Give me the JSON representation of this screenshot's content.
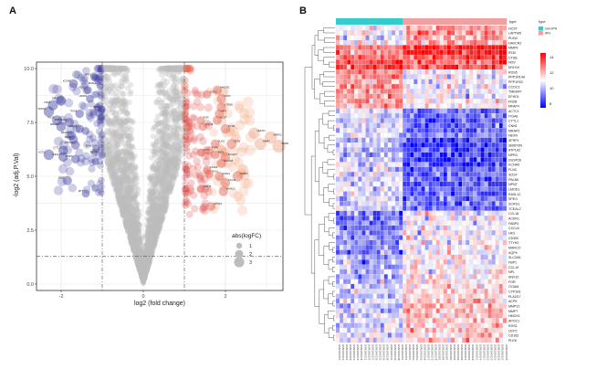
{
  "panel_a_label": "A",
  "panel_b_label": "B",
  "chart_data": [
    {
      "type": "scatter",
      "subtype": "volcano",
      "xlabel": "log2 (fold change)",
      "ylabel": "-log2 (adj.P.Val)",
      "xlim": [
        -2.6,
        3.4
      ],
      "ylim": [
        -0.3,
        10.3
      ],
      "xticks": [
        -2,
        0,
        2
      ],
      "xtick_labels": [
        "-2",
        "0",
        "2"
      ],
      "yticks": [
        0,
        2.5,
        5,
        7.5,
        10
      ],
      "ytick_labels": [
        "0.0",
        "2.5",
        "5.0",
        "7.5",
        "10.0"
      ],
      "fc_threshold": 1,
      "p_threshold_line": 1.3,
      "grid": true,
      "legend": {
        "title": "abs(logFC)",
        "placement": "bottom-right",
        "entries": [
          "1",
          "2",
          "3"
        ],
        "sizes": [
          1,
          2,
          3
        ]
      },
      "colors": {
        "down": "#3a3aa0",
        "up": "#e8644a",
        "ns": "#bdbdbd"
      },
      "n_background_points": 2600,
      "labeled_points": [
        {
          "gene": "SFRP1",
          "x": -1.65,
          "y": 5.8
        },
        {
          "gene": "TCEAL2",
          "x": -1.95,
          "y": 5.9
        },
        {
          "gene": "ACTC1",
          "x": -2.3,
          "y": 6.0
        },
        {
          "gene": "CYTL1",
          "x": -1.95,
          "y": 6.2
        },
        {
          "gene": "SOST",
          "x": -1.85,
          "y": 4.8
        },
        {
          "gene": "DPT",
          "x": -1.4,
          "y": 4.2
        },
        {
          "gene": "NPNT",
          "x": -2.0,
          "y": 8.5
        },
        {
          "gene": "CNN1",
          "x": -2.2,
          "y": 8.3
        },
        {
          "gene": "SCRG1",
          "x": -2.3,
          "y": 8.0
        },
        {
          "gene": "RGS5",
          "x": -2.1,
          "y": 7.6
        },
        {
          "gene": "MRAP2",
          "x": -2.0,
          "y": 7.3
        },
        {
          "gene": "PPP1R14A",
          "x": -1.8,
          "y": 7.5
        },
        {
          "gene": "MFAP4",
          "x": -1.75,
          "y": 6.9
        },
        {
          "gene": "FRZB",
          "x": -1.7,
          "y": 6.7
        },
        {
          "gene": "ATP1A2",
          "x": -1.65,
          "y": 6.45
        },
        {
          "gene": "LMOD1",
          "x": -1.3,
          "y": 8.6
        },
        {
          "gene": "KCNA5",
          "x": -1.7,
          "y": 9.3
        },
        {
          "gene": "FLNC",
          "x": -1.35,
          "y": 9.0
        },
        {
          "gene": "SPEG",
          "x": -1.2,
          "y": 9.6
        },
        {
          "gene": "RASL12",
          "x": -1.05,
          "y": 9.2
        },
        {
          "gene": "ITGA8",
          "x": -1.55,
          "y": 7.9
        },
        {
          "gene": "CCDC3",
          "x": -1.55,
          "y": 7.2
        },
        {
          "gene": "NEXN",
          "x": -1.0,
          "y": 8.1
        },
        {
          "gene": "EFHD1",
          "x": -1.15,
          "y": 6.3
        },
        {
          "gene": "TMEM47",
          "x": -1.0,
          "y": 6.0
        },
        {
          "gene": "MMP12",
          "x": 3.1,
          "y": 6.8
        },
        {
          "gene": "MMP7",
          "x": 2.85,
          "y": 6.5
        },
        {
          "gene": "MMP9",
          "x": 3.3,
          "y": 6.4
        },
        {
          "gene": "HMOX1",
          "x": 2.7,
          "y": 7.0
        },
        {
          "gene": "IFI30",
          "x": 2.15,
          "y": 6.5
        },
        {
          "gene": "CTSB",
          "x": 2.0,
          "y": 7.2
        },
        {
          "gene": "PLIN2",
          "x": 1.75,
          "y": 6.5
        },
        {
          "gene": "HCST",
          "x": 1.8,
          "y": 7.6
        },
        {
          "gene": "CCL18",
          "x": 1.45,
          "y": 7.3
        },
        {
          "gene": "FABP4",
          "x": 2.3,
          "y": 5.0
        },
        {
          "gene": "CCL19",
          "x": 2.0,
          "y": 4.7
        },
        {
          "gene": "ACKR1",
          "x": 1.85,
          "y": 5.0
        },
        {
          "gene": "CXCL8",
          "x": 1.55,
          "y": 5.3
        },
        {
          "gene": "FBP1",
          "x": 1.75,
          "y": 6.0
        },
        {
          "gene": "PLA2G7",
          "x": 2.0,
          "y": 5.9
        },
        {
          "gene": "SLC2A5",
          "x": 1.9,
          "y": 5.6
        },
        {
          "gene": "MARCO",
          "x": 1.95,
          "y": 4.3
        },
        {
          "gene": "CYP1B1",
          "x": 1.9,
          "y": 8.2
        },
        {
          "gene": "HK3",
          "x": 1.85,
          "y": 7.9
        },
        {
          "gene": "FGR",
          "x": 1.4,
          "y": 7.6
        },
        {
          "gene": "ACP5",
          "x": 1.4,
          "y": 6.1
        },
        {
          "gene": "SNX10",
          "x": 1.4,
          "y": 4.4
        },
        {
          "gene": "UCP2",
          "x": 1.9,
          "y": 8.6
        },
        {
          "gene": "CD163",
          "x": 1.55,
          "y": 8.8
        },
        {
          "gene": "HAVCR2",
          "x": 1.8,
          "y": 9.0
        },
        {
          "gene": "PLEK",
          "x": 1.6,
          "y": 6.2
        },
        {
          "gene": "RGS1",
          "x": 1.6,
          "y": 5.1
        },
        {
          "gene": "APOC1",
          "x": 1.65,
          "y": 3.6
        }
      ]
    },
    {
      "type": "heatmap",
      "legend": {
        "title": "type",
        "entries": [
          {
            "label": "non-IPH",
            "color": "#33cccc"
          },
          {
            "label": "IPH",
            "color": "#f0a0a0"
          }
        ]
      },
      "colorbar": {
        "ticks": [
          "14",
          "12",
          "10",
          "8"
        ],
        "tick_values": [
          14,
          12,
          10,
          8
        ],
        "min": 7.5,
        "mid": 11,
        "max": 14.5,
        "low_color": "#0000ff",
        "mid_color": "#ffffff",
        "high_color": "#ff0000"
      },
      "annotation_label": "type",
      "n_non_iph": 18,
      "n_iph": 28,
      "sample_prefix": "GSM1060",
      "rows": [
        {
          "gene": "HCST",
          "non_iph": 10.8,
          "iph": 12.3
        },
        {
          "gene": "LAPTM5",
          "non_iph": 11.0,
          "iph": 12.6
        },
        {
          "gene": "PLIN2",
          "non_iph": 11.0,
          "iph": 12.5
        },
        {
          "gene": "HAVCR2",
          "non_iph": 10.9,
          "iph": 12.3
        },
        {
          "gene": "MMP9",
          "non_iph": 12.8,
          "iph": 14.0
        },
        {
          "gene": "IFI30",
          "non_iph": 12.9,
          "iph": 13.8
        },
        {
          "gene": "CTSB",
          "non_iph": 13.0,
          "iph": 13.6
        },
        {
          "gene": "NOV",
          "non_iph": 13.8,
          "iph": 13.2
        },
        {
          "gene": "MYH10",
          "non_iph": 14.0,
          "iph": 13.5
        },
        {
          "gene": "RGS5",
          "non_iph": 12.6,
          "iph": 11.0
        },
        {
          "gene": "PPP1R14A",
          "non_iph": 12.7,
          "iph": 10.8
        },
        {
          "gene": "PPP1R3C",
          "non_iph": 12.5,
          "iph": 10.7
        },
        {
          "gene": "CCDC3",
          "non_iph": 12.6,
          "iph": 10.8
        },
        {
          "gene": "TMEM47",
          "non_iph": 12.5,
          "iph": 10.9
        },
        {
          "gene": "EFHD1",
          "non_iph": 12.3,
          "iph": 11.0
        },
        {
          "gene": "FRZB",
          "non_iph": 12.4,
          "iph": 11.2
        },
        {
          "gene": "MFAP4",
          "non_iph": 12.2,
          "iph": 11.2
        },
        {
          "gene": "ACTC1",
          "non_iph": 10.8,
          "iph": 9.0
        },
        {
          "gene": "ITGA8",
          "non_iph": 10.6,
          "iph": 8.9
        },
        {
          "gene": "CYTL1",
          "non_iph": 10.5,
          "iph": 8.8
        },
        {
          "gene": "CNN1",
          "non_iph": 10.4,
          "iph": 8.9
        },
        {
          "gene": "MRAP2",
          "non_iph": 10.6,
          "iph": 9.0
        },
        {
          "gene": "NEXN",
          "non_iph": 10.8,
          "iph": 9.3
        },
        {
          "gene": "SFRP1",
          "non_iph": 10.0,
          "iph": 8.3
        },
        {
          "gene": "SBSPON",
          "non_iph": 10.0,
          "iph": 8.2
        },
        {
          "gene": "ATP1A2",
          "non_iph": 10.1,
          "iph": 8.3
        },
        {
          "gene": "NPR3",
          "non_iph": 10.2,
          "iph": 8.4
        },
        {
          "gene": "DUSP26",
          "non_iph": 10.2,
          "iph": 8.4
        },
        {
          "gene": "KCNA5",
          "non_iph": 10.3,
          "iph": 8.6
        },
        {
          "gene": "FLNC",
          "non_iph": 10.4,
          "iph": 8.7
        },
        {
          "gene": "SOST",
          "non_iph": 10.5,
          "iph": 8.8
        },
        {
          "gene": "FBLN5",
          "non_iph": 10.6,
          "iph": 8.9
        },
        {
          "gene": "NPNT",
          "non_iph": 10.5,
          "iph": 8.8
        },
        {
          "gene": "LMOD1",
          "non_iph": 10.6,
          "iph": 8.9
        },
        {
          "gene": "RASL12",
          "non_iph": 10.6,
          "iph": 9.0
        },
        {
          "gene": "SPEG",
          "non_iph": 10.7,
          "iph": 9.1
        },
        {
          "gene": "SCRG1",
          "non_iph": 10.5,
          "iph": 9.0
        },
        {
          "gene": "TCEAL2",
          "non_iph": 10.6,
          "iph": 9.1
        },
        {
          "gene": "CCL18",
          "non_iph": 9.0,
          "iph": 10.9
        },
        {
          "gene": "ACKR1",
          "non_iph": 9.1,
          "iph": 10.8
        },
        {
          "gene": "FABP4",
          "non_iph": 9.2,
          "iph": 10.9
        },
        {
          "gene": "CXCL8",
          "non_iph": 9.2,
          "iph": 10.8
        },
        {
          "gene": "HK3",
          "non_iph": 9.3,
          "iph": 10.9
        },
        {
          "gene": "CD300",
          "non_iph": 9.3,
          "iph": 11.0
        },
        {
          "gene": "TTYH3",
          "non_iph": 9.4,
          "iph": 11.0
        },
        {
          "gene": "MARCO",
          "non_iph": 9.4,
          "iph": 11.0
        },
        {
          "gene": "AQP9",
          "non_iph": 9.5,
          "iph": 11.1
        },
        {
          "gene": "SLC2A5",
          "non_iph": 9.6,
          "iph": 11.1
        },
        {
          "gene": "FBP1",
          "non_iph": 9.7,
          "iph": 11.2
        },
        {
          "gene": "CCL19",
          "non_iph": 9.8,
          "iph": 11.3
        },
        {
          "gene": "NPL",
          "non_iph": 9.9,
          "iph": 11.3
        },
        {
          "gene": "SNX10",
          "non_iph": 10.0,
          "iph": 11.4
        },
        {
          "gene": "FGR",
          "non_iph": 10.0,
          "iph": 11.4
        },
        {
          "gene": "ITGAM",
          "non_iph": 10.1,
          "iph": 11.5
        },
        {
          "gene": "CYP1B1",
          "non_iph": 10.1,
          "iph": 11.5
        },
        {
          "gene": "PLA2G7",
          "non_iph": 10.2,
          "iph": 11.6
        },
        {
          "gene": "ACP5",
          "non_iph": 10.3,
          "iph": 11.7
        },
        {
          "gene": "MMP12",
          "non_iph": 10.0,
          "iph": 12.0
        },
        {
          "gene": "MMP7",
          "non_iph": 10.1,
          "iph": 11.9
        },
        {
          "gene": "HMOX1",
          "non_iph": 10.4,
          "iph": 11.9
        },
        {
          "gene": "APOC1",
          "non_iph": 10.6,
          "iph": 12.0
        },
        {
          "gene": "RGS1",
          "non_iph": 10.5,
          "iph": 11.8
        },
        {
          "gene": "UCP2",
          "non_iph": 10.7,
          "iph": 11.8
        },
        {
          "gene": "CD163",
          "non_iph": 10.6,
          "iph": 11.7
        },
        {
          "gene": "PLEK",
          "non_iph": 10.7,
          "iph": 11.8
        }
      ]
    }
  ]
}
